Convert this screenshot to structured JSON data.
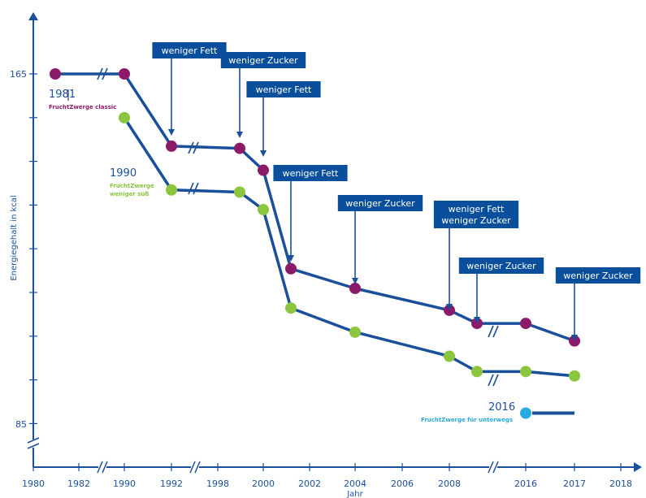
{
  "chart_data": {
    "type": "line",
    "ylabel": "Energiegehalt in kcal",
    "xlabel": "Jahr",
    "y_ticks": [
      "165",
      "85"
    ],
    "y_tick_values": [
      165,
      85
    ],
    "x_ticks": [
      "1980",
      "1982",
      "1990",
      "1992",
      "1998",
      "2000",
      "2002",
      "2004",
      "2006",
      "2008",
      "2016",
      "2017",
      "2018"
    ],
    "axis_breaks": "x-axis breaks between 1982–1990, 1992–1998, 2008–2016; y-axis break below 85",
    "colors": {
      "axis": "#1a4f9c",
      "line": "#1a4f9c",
      "classic": "#8c1a6b",
      "weniger_suess": "#8cc63f",
      "unterwegs": "#29abe2",
      "annotation_bg": "#0a4f9c"
    },
    "series": [
      {
        "label_year": "1981",
        "label_name": "FruchtZwerge classic",
        "color": "#8c1a6b",
        "points": [
          {
            "x": "1981",
            "y": 165
          },
          {
            "x": "1990",
            "y": 165
          },
          {
            "x": "1992",
            "y": 148.5
          },
          {
            "x": "1999",
            "y": 148
          },
          {
            "x": "2000",
            "y": 143
          },
          {
            "x": "2001",
            "y": 120.5
          },
          {
            "x": "2004",
            "y": 116
          },
          {
            "x": "2008",
            "y": 111
          },
          {
            "x": "2009",
            "y": 108
          },
          {
            "x": "2016",
            "y": 108
          },
          {
            "x": "2017",
            "y": 104
          }
        ]
      },
      {
        "label_year": "1990",
        "label_name": "FruchtZwerge weniger süß",
        "color": "#8cc63f",
        "points": [
          {
            "x": "1990",
            "y": 155
          },
          {
            "x": "1992",
            "y": 138.5
          },
          {
            "x": "1999",
            "y": 138
          },
          {
            "x": "2000",
            "y": 134
          },
          {
            "x": "2001",
            "y": 111.5
          },
          {
            "x": "2004",
            "y": 106
          },
          {
            "x": "2008",
            "y": 100.5
          },
          {
            "x": "2009",
            "y": 97
          },
          {
            "x": "2016",
            "y": 97
          },
          {
            "x": "2017",
            "y": 96
          }
        ]
      },
      {
        "label_year": "2016",
        "label_name": "FruchtZwerge für unterwegs",
        "color": "#29abe2",
        "points": [
          {
            "x": "2016",
            "y": 87.5
          },
          {
            "x": "2017",
            "y": 87.5
          }
        ]
      }
    ],
    "annotations": [
      {
        "text": "weniger Fett",
        "x": "1992"
      },
      {
        "text": "weniger Zucker",
        "x": "1999"
      },
      {
        "text": "weniger Fett",
        "x": "2000"
      },
      {
        "text": "weniger Fett",
        "x": "2001"
      },
      {
        "text": "weniger Zucker",
        "x": "2004"
      },
      {
        "text": "weniger Fett\nweniger Zucker",
        "x": "2008"
      },
      {
        "text": "weniger Zucker",
        "x": "2009"
      },
      {
        "text": "weniger Zucker",
        "x": "2017"
      }
    ]
  }
}
